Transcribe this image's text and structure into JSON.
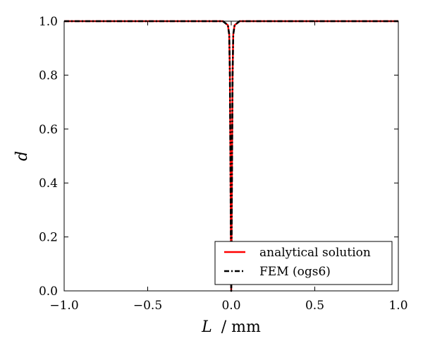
{
  "chart_data": {
    "type": "line",
    "title": "",
    "xlabel_var": "L",
    "xlabel_unit": "/ mm",
    "ylabel": "d",
    "xlim": [
      -1.0,
      1.0
    ],
    "ylim": [
      0.0,
      1.0
    ],
    "xticks": [
      -1.0,
      -0.5,
      0.0,
      0.5,
      1.0
    ],
    "xtick_labels": [
      "−1.0",
      "−0.5",
      "0.0",
      "0.5",
      "1.0"
    ],
    "yticks": [
      0.0,
      0.2,
      0.4,
      0.6,
      0.8,
      1.0
    ],
    "ytick_labels": [
      "0.0",
      "0.2",
      "0.4",
      "0.6",
      "0.8",
      "1.0"
    ],
    "grid": false,
    "legend_position": "bottom-right",
    "series": [
      {
        "name": "analytical solution",
        "color": "#ff0000",
        "style": "solid",
        "x": [
          -1.0,
          -0.05,
          -0.02,
          -0.012,
          -0.008,
          -0.005,
          -0.003,
          -0.0015,
          0.0,
          0.0015,
          0.003,
          0.005,
          0.008,
          0.012,
          0.02,
          0.05,
          1.0
        ],
        "y": [
          1.0,
          1.0,
          0.985,
          0.95,
          0.8,
          0.5,
          0.3,
          0.12,
          0.0,
          0.12,
          0.3,
          0.5,
          0.8,
          0.95,
          0.985,
          1.0,
          1.0
        ]
      },
      {
        "name": "FEM (ogs6)",
        "color": "#000000",
        "style": "dashdot",
        "x": [
          -1.0,
          -0.05,
          -0.02,
          -0.012,
          -0.008,
          -0.005,
          -0.003,
          -0.0015,
          0.0,
          0.0015,
          0.003,
          0.005,
          0.008,
          0.012,
          0.02,
          0.05,
          1.0
        ],
        "y": [
          1.0,
          1.0,
          0.985,
          0.95,
          0.8,
          0.5,
          0.3,
          0.12,
          0.0,
          0.12,
          0.3,
          0.5,
          0.8,
          0.95,
          0.985,
          1.0,
          1.0
        ]
      }
    ]
  }
}
